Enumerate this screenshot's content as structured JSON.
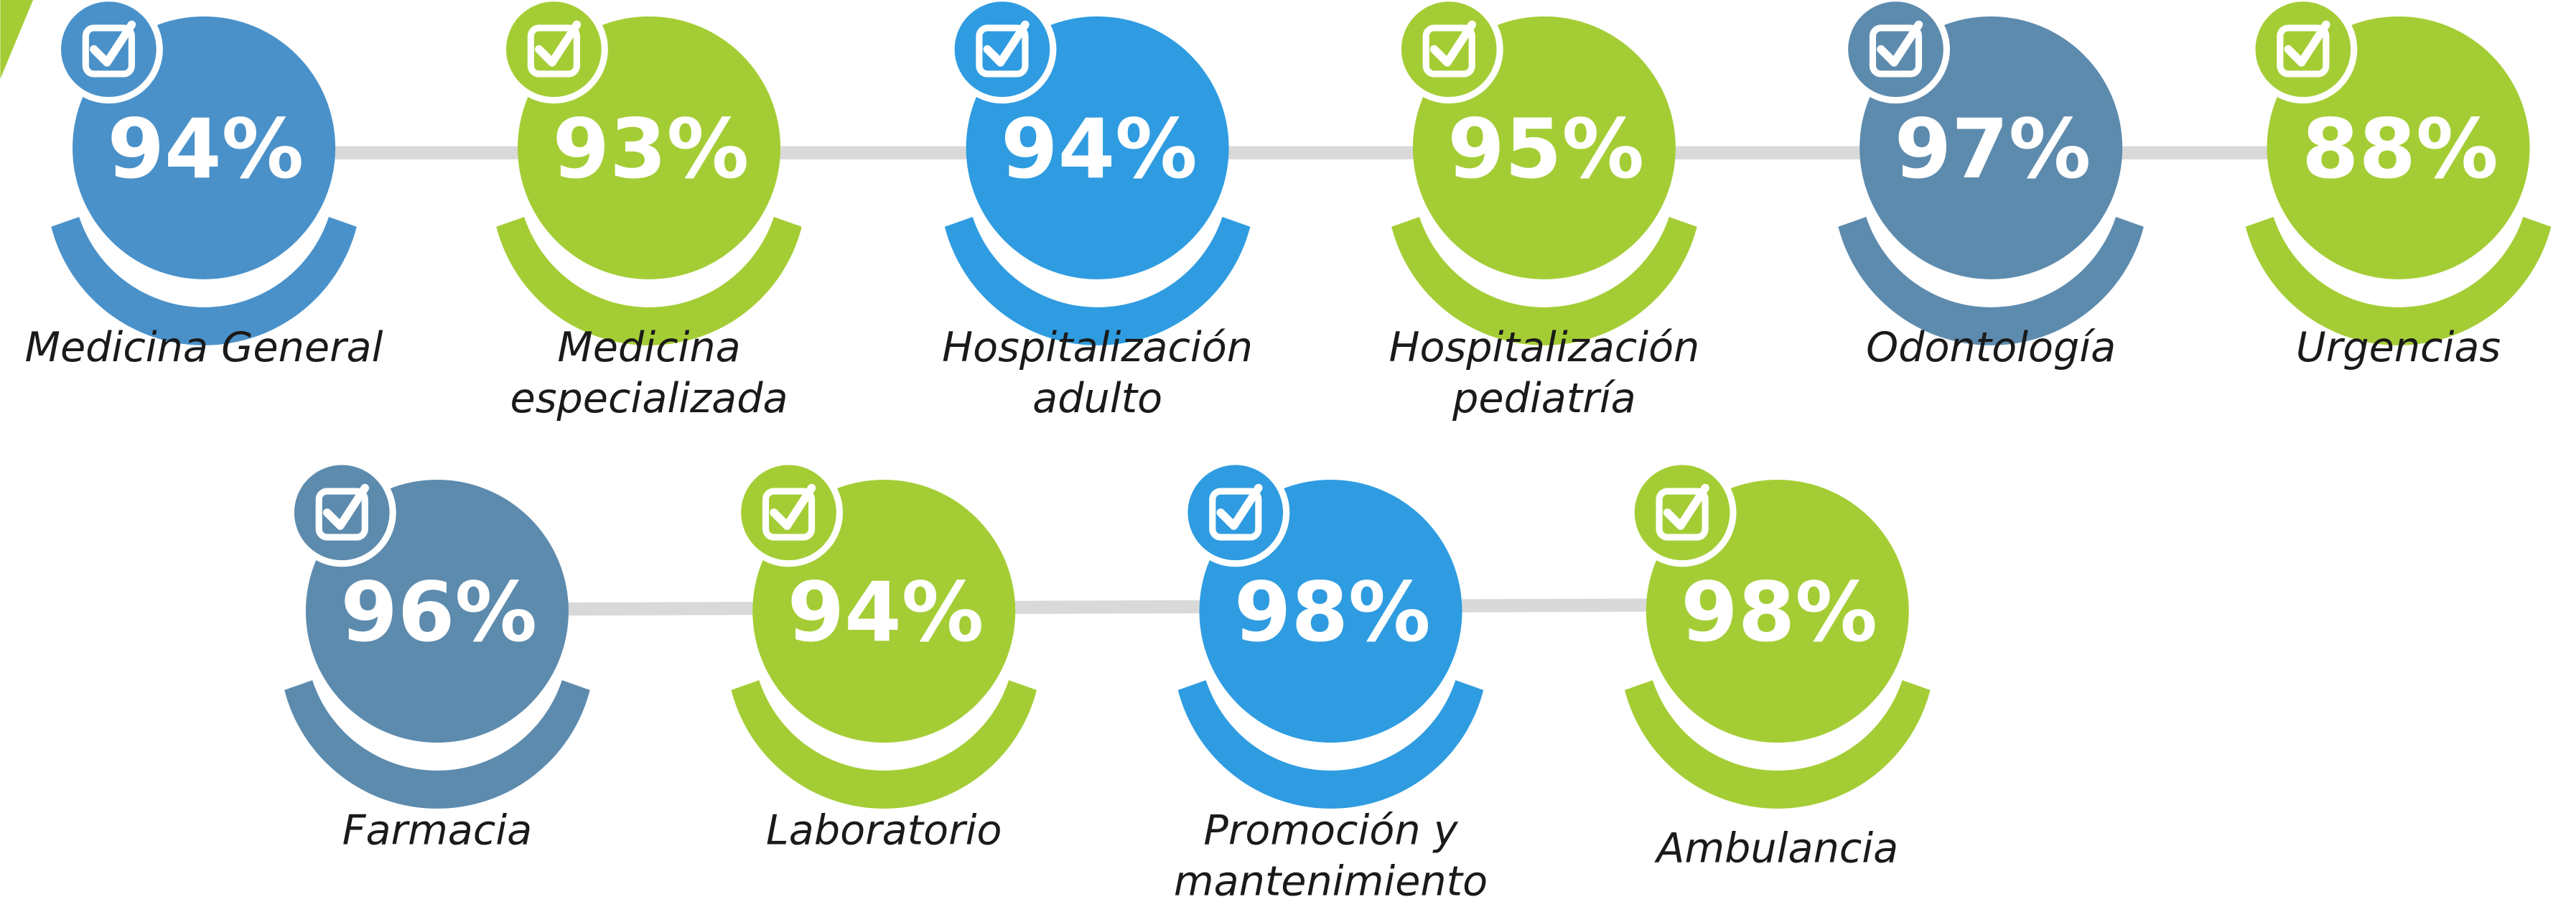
{
  "items": [
    {
      "value": "94%",
      "label": [
        "Medicina General"
      ],
      "color": "#4a91c9"
    },
    {
      "value": "93%",
      "label": [
        "Medicina",
        "especializada"
      ],
      "color": "#a4cd35"
    },
    {
      "value": "94%",
      "label": [
        "Hospitalización",
        "adulto"
      ],
      "color": "#2f9ce1"
    },
    {
      "value": "95%",
      "label": [
        "Hospitalización",
        "pediatría"
      ],
      "color": "#a4cd35"
    },
    {
      "value": "97%",
      "label": [
        "Odontología"
      ],
      "color": "#5d8bae"
    },
    {
      "value": "88%",
      "label": [
        "Urgencias"
      ],
      "color": "#a4cd35"
    },
    {
      "value": "96%",
      "label": [
        "Farmacia"
      ],
      "color": "#5d8bae"
    },
    {
      "value": "94%",
      "label": [
        "Laboratorio"
      ],
      "color": "#a4cd35"
    },
    {
      "value": "98%",
      "label": [
        "Promoción y",
        "mantenimiento"
      ],
      "color": "#2f9ce1"
    },
    {
      "value": "98%",
      "label": [
        "Ambulancia"
      ],
      "color": "#a4cd35"
    }
  ]
}
